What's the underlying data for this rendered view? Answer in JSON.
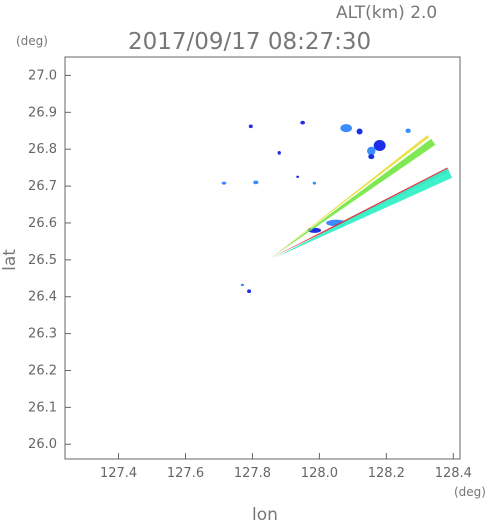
{
  "header": {
    "altitude_label": "ALT(km)  2.0",
    "timestamp": "2017/09/17 08:27:30",
    "y_unit": "(deg)",
    "x_unit": "(deg)"
  },
  "chart_data": {
    "type": "heatmap",
    "xlabel": "lon",
    "ylabel": "lat",
    "xlim": [
      127.24,
      128.42
    ],
    "ylim": [
      25.96,
      27.05
    ],
    "x_ticks": [
      127.4,
      127.6,
      127.8,
      128.0,
      128.2,
      128.4
    ],
    "y_ticks": [
      26.0,
      26.1,
      26.2,
      26.3,
      26.4,
      26.5,
      26.6,
      26.7,
      26.8,
      26.9,
      27.0
    ],
    "x_tick_labels": [
      "127.4",
      "127.6",
      "127.8",
      "128.0",
      "128.2",
      "128.4"
    ],
    "y_tick_labels": [
      "26.0",
      "26.1",
      "26.2",
      "26.3",
      "26.4",
      "26.5",
      "26.6",
      "26.7",
      "26.8",
      "26.9",
      "27.0"
    ],
    "grid": false,
    "colors": {
      "strong": "#1c2ee8",
      "moderate": "#3a8cff",
      "light": "#34f0c8",
      "green": "#78e84a",
      "yellow": "#e8e046",
      "red": "#e8283a"
    },
    "echo_cells": [
      {
        "lon": 127.795,
        "lat": 26.862,
        "w": 0.012,
        "h": 0.01,
        "level": "strong"
      },
      {
        "lon": 127.95,
        "lat": 26.872,
        "w": 0.014,
        "h": 0.01,
        "level": "strong"
      },
      {
        "lon": 128.08,
        "lat": 26.857,
        "w": 0.035,
        "h": 0.022,
        "level": "moderate"
      },
      {
        "lon": 128.12,
        "lat": 26.848,
        "w": 0.018,
        "h": 0.016,
        "level": "strong"
      },
      {
        "lon": 128.265,
        "lat": 26.85,
        "w": 0.016,
        "h": 0.012,
        "level": "moderate"
      },
      {
        "lon": 127.88,
        "lat": 26.79,
        "w": 0.01,
        "h": 0.01,
        "level": "strong"
      },
      {
        "lon": 128.18,
        "lat": 26.81,
        "w": 0.036,
        "h": 0.03,
        "level": "strong"
      },
      {
        "lon": 128.155,
        "lat": 26.795,
        "w": 0.025,
        "h": 0.024,
        "level": "moderate"
      },
      {
        "lon": 128.155,
        "lat": 26.78,
        "w": 0.018,
        "h": 0.014,
        "level": "strong"
      },
      {
        "lon": 127.715,
        "lat": 26.708,
        "w": 0.014,
        "h": 0.008,
        "level": "moderate"
      },
      {
        "lon": 127.81,
        "lat": 26.71,
        "w": 0.016,
        "h": 0.01,
        "level": "moderate"
      },
      {
        "lon": 127.935,
        "lat": 26.725,
        "w": 0.008,
        "h": 0.006,
        "level": "strong"
      },
      {
        "lon": 127.985,
        "lat": 26.708,
        "w": 0.01,
        "h": 0.008,
        "level": "moderate"
      },
      {
        "lon": 128.05,
        "lat": 26.6,
        "w": 0.06,
        "h": 0.018,
        "level": "moderate"
      },
      {
        "lon": 127.985,
        "lat": 26.58,
        "w": 0.04,
        "h": 0.014,
        "level": "strong"
      },
      {
        "lon": 127.79,
        "lat": 26.415,
        "w": 0.012,
        "h": 0.01,
        "level": "strong"
      },
      {
        "lon": 127.77,
        "lat": 26.432,
        "w": 0.01,
        "h": 0.006,
        "level": "moderate"
      }
    ],
    "beams": [
      {
        "from": [
          127.855,
          26.505
        ],
        "to": [
          128.34,
          26.82
        ],
        "width": 0.01,
        "level": "green"
      },
      {
        "from": [
          127.855,
          26.505
        ],
        "to": [
          128.325,
          26.835
        ],
        "width": 0.004,
        "level": "yellow"
      },
      {
        "from": [
          127.855,
          26.505
        ],
        "to": [
          128.385,
          26.745
        ],
        "width": 0.006,
        "level": "red"
      },
      {
        "from": [
          127.865,
          26.505
        ],
        "to": [
          128.39,
          26.735
        ],
        "width": 0.014,
        "level": "light"
      }
    ]
  }
}
